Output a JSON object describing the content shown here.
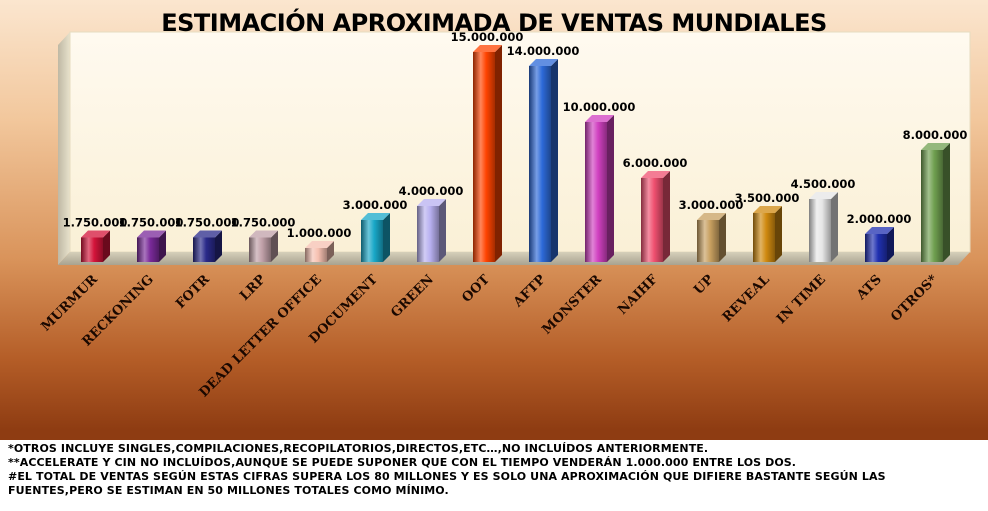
{
  "chart_data": {
    "type": "bar",
    "title": "ESTIMACIÓN APROXIMADA DE VENTAS MUNDIALES",
    "xlabel": "",
    "ylabel": "",
    "ylim": [
      0,
      15000000
    ],
    "grid": false,
    "legend": "none",
    "categories": [
      "MURMUR",
      "RECKONING",
      "FOTR",
      "LRP",
      "DEAD LETTER OFFICE",
      "DOCUMENT",
      "GREEN",
      "OOT",
      "AFTP",
      "MONSTER",
      "NAIHF",
      "UP",
      "REVEAL",
      "IN TIME",
      "ATS",
      "OTROS*"
    ],
    "values": [
      1750000,
      1750000,
      1750000,
      1750000,
      1000000,
      3000000,
      4000000,
      15000000,
      14000000,
      10000000,
      6000000,
      3000000,
      3500000,
      4500000,
      2000000,
      8000000
    ],
    "data_labels": [
      "1.750.000",
      "1.750.000",
      "1.750.000",
      "1.750.000",
      "1.000.000",
      "3.000.000",
      "4.000.000",
      "15.000.000",
      "14.000.000",
      "10.000.000",
      "6.000.000",
      "3.000.000",
      "3.500.000",
      "4.500.000",
      "2.000.000",
      "8.000.000"
    ],
    "colors": [
      "#d4143a",
      "#7a2a9a",
      "#2a2a8a",
      "#c0a0a8",
      "#f6c0b0",
      "#19a8c8",
      "#b8b0f0",
      "#ff4400",
      "#2d6ad8",
      "#d040c0",
      "#f05070",
      "#c8a060",
      "#d08a10",
      "#e6e6e6",
      "#2030b0",
      "#70a050"
    ]
  },
  "footnotes": {
    "line1": "*OTROS INCLUYE SINGLES,COMPILACIONES,RECOPILATORIOS,DIRECTOS,ETC…,NO INCLUÍDOS ANTERIORMENTE.",
    "line2": "**ACCELERATE Y CIN NO INCLUÍDOS,AUNQUE SE PUEDE SUPONER QUE CON EL TIEMPO VENDERÁN 1.000.000 ENTRE LOS DOS.",
    "line3": "#EL TOTAL DE VENTAS SEGÚN ESTAS CIFRAS SUPERA LOS 80 MILLONES Y ES SOLO UNA APROXIMACIÓN QUE DIFIERE BASTANTE SEGÚN LAS FUENTES,PERO SE ESTIMAN EN 50 MILLONES TOTALES COMO MÍNIMO."
  }
}
